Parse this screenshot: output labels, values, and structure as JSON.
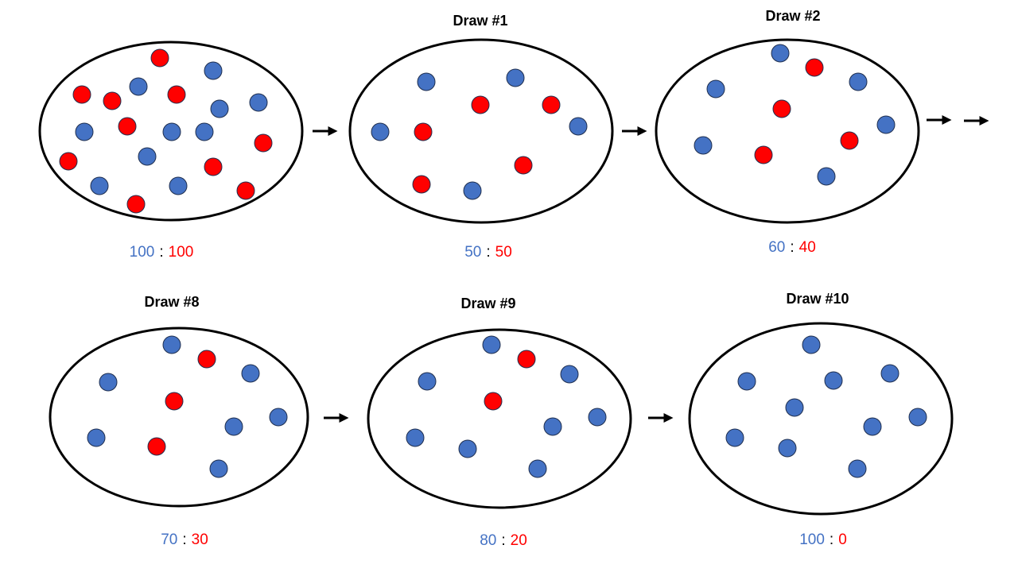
{
  "panels": [
    {
      "ratio": {
        "blue": "100",
        "separator": ":",
        "red": "100"
      }
    },
    {
      "title": "Draw #1",
      "ratio": {
        "blue": "50",
        "separator": ":",
        "red": "50"
      }
    },
    {
      "title": "Draw #2",
      "ratio": {
        "blue": "60",
        "separator": ":",
        "red": "40"
      }
    },
    {
      "title": "Draw #8",
      "ratio": {
        "blue": "70",
        "separator": ":",
        "red": "30"
      }
    },
    {
      "title": "Draw #9",
      "ratio": {
        "blue": "80",
        "separator": ":",
        "red": "20"
      }
    },
    {
      "title": "Draw #10",
      "ratio": {
        "blue": "100",
        "separator": ":",
        "red": "0"
      }
    }
  ]
}
